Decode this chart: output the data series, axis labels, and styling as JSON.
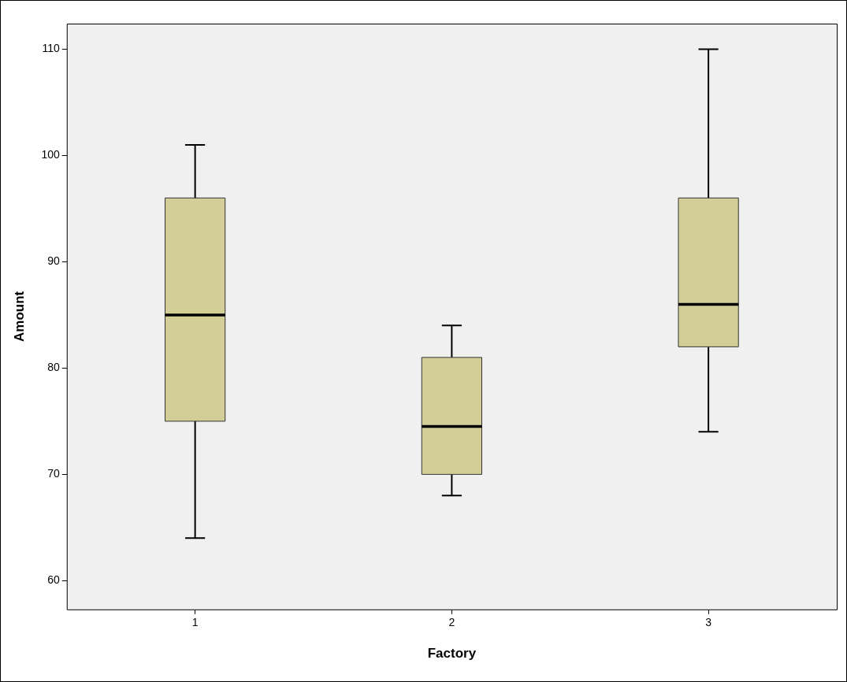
{
  "chart_data": {
    "type": "box",
    "xlabel": "Factory",
    "ylabel": "Amount",
    "categories": [
      "1",
      "2",
      "3"
    ],
    "color": "#d3ce97",
    "boxes": [
      {
        "low": 64,
        "q1": 75,
        "median": 85,
        "q3": 96,
        "high": 101
      },
      {
        "low": 68,
        "q1": 70,
        "median": 74.5,
        "q3": 81,
        "high": 84
      },
      {
        "low": 74,
        "q1": 82,
        "median": 86,
        "q3": 96,
        "high": 110
      }
    ],
    "ylim": [
      57.3,
      112.4
    ],
    "yticks": [
      60,
      70,
      80,
      90,
      100,
      110
    ],
    "grid": false,
    "legend": false
  }
}
